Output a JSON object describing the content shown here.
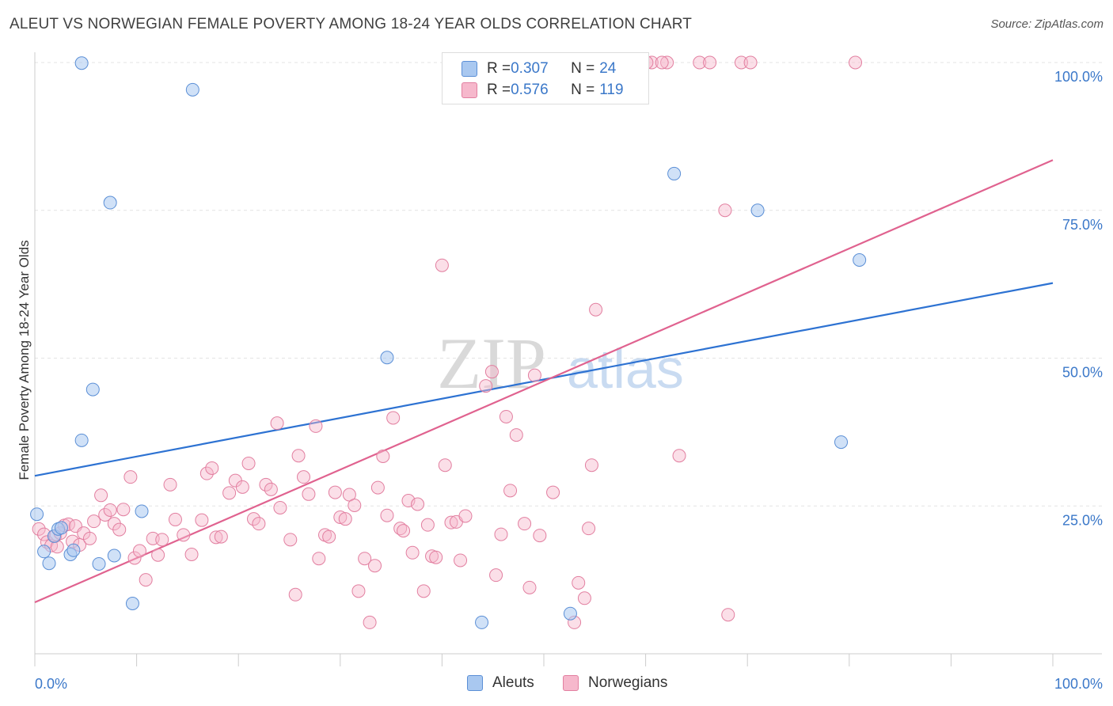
{
  "title": "ALEUT VS NORWEGIAN FEMALE POVERTY AMONG 18-24 YEAR OLDS CORRELATION CHART",
  "source": "Source: ZipAtlas.com",
  "watermark": {
    "zip": "ZIP",
    "atlas": "atlas"
  },
  "colors": {
    "aleut_fill": "#a9c8f0",
    "aleut_stroke": "#5b8fd6",
    "aleut_line": "#2d72d2",
    "norw_fill": "#f6b8cc",
    "norw_stroke": "#e27fa0",
    "norw_line": "#e0628f",
    "axis_label_blue": "#3b78c9",
    "grid": "#e3e3e3"
  },
  "legend": {
    "rows": [
      {
        "r_label": "R = ",
        "r_value": "0.307",
        "n_label": "N = ",
        "n_value": "24"
      },
      {
        "r_label": "R = ",
        "r_value": "0.576",
        "n_label": "N = ",
        "n_value": "119"
      }
    ]
  },
  "bottom_legend": {
    "aleuts": "Aleuts",
    "norwegians": "Norwegians"
  },
  "chart_data": {
    "type": "scatter",
    "xlabel": "",
    "ylabel": "Female Poverty Among 18-24 Year Olds",
    "xlim": [
      0,
      100
    ],
    "ylim": [
      0,
      100
    ],
    "x_tick_labels": [
      "0.0%",
      "100.0%"
    ],
    "y_tick_labels": [
      {
        "value": 25,
        "label": "25.0%"
      },
      {
        "value": 50,
        "label": "50.0%"
      },
      {
        "value": 75,
        "label": "75.0%"
      },
      {
        "value": 100,
        "label": "100.0%"
      }
    ],
    "grid": true,
    "series": [
      {
        "name": "Aleuts",
        "points": [
          [
            0.2,
            23.6
          ],
          [
            0.9,
            17.3
          ],
          [
            1.4,
            15.3
          ],
          [
            1.9,
            19.9
          ],
          [
            2.3,
            21.1
          ],
          [
            2.6,
            21.3
          ],
          [
            3.5,
            16.8
          ],
          [
            3.8,
            17.5
          ],
          [
            4.6,
            99.9
          ],
          [
            4.6,
            36.1
          ],
          [
            5.7,
            44.7
          ],
          [
            6.3,
            15.2
          ],
          [
            7.4,
            76.3
          ],
          [
            7.8,
            16.6
          ],
          [
            9.6,
            8.5
          ],
          [
            10.5,
            24.1
          ],
          [
            15.5,
            95.4
          ],
          [
            34.6,
            50.1
          ],
          [
            43.9,
            5.3
          ],
          [
            52.6,
            6.8
          ],
          [
            62.8,
            81.2
          ],
          [
            71.0,
            75.0
          ],
          [
            79.2,
            35.8
          ],
          [
            81.0,
            66.6
          ]
        ]
      },
      {
        "name": "Norwegians",
        "points": [
          [
            0.4,
            21.1
          ],
          [
            0.9,
            20.2
          ],
          [
            1.2,
            18.9
          ],
          [
            1.6,
            18.3
          ],
          [
            2.0,
            19.9
          ],
          [
            2.2,
            18.1
          ],
          [
            2.5,
            20.4
          ],
          [
            2.9,
            21.7
          ],
          [
            3.3,
            21.9
          ],
          [
            3.7,
            19.0
          ],
          [
            4.0,
            21.6
          ],
          [
            4.4,
            18.4
          ],
          [
            4.8,
            20.4
          ],
          [
            5.4,
            19.5
          ],
          [
            5.8,
            22.4
          ],
          [
            6.5,
            26.8
          ],
          [
            6.9,
            23.5
          ],
          [
            7.4,
            24.3
          ],
          [
            7.8,
            22.0
          ],
          [
            8.3,
            21.0
          ],
          [
            8.7,
            24.4
          ],
          [
            9.4,
            29.9
          ],
          [
            9.8,
            16.2
          ],
          [
            10.3,
            17.4
          ],
          [
            10.9,
            12.5
          ],
          [
            11.6,
            19.5
          ],
          [
            12.1,
            16.7
          ],
          [
            12.5,
            19.3
          ],
          [
            13.3,
            28.6
          ],
          [
            13.8,
            22.7
          ],
          [
            14.6,
            20.1
          ],
          [
            15.4,
            16.8
          ],
          [
            16.4,
            22.6
          ],
          [
            16.9,
            30.5
          ],
          [
            17.4,
            31.4
          ],
          [
            17.8,
            19.7
          ],
          [
            18.3,
            19.8
          ],
          [
            19.1,
            27.2
          ],
          [
            19.7,
            29.3
          ],
          [
            20.4,
            28.2
          ],
          [
            21.0,
            32.2
          ],
          [
            21.5,
            22.8
          ],
          [
            22.0,
            22.0
          ],
          [
            22.7,
            28.6
          ],
          [
            23.2,
            27.8
          ],
          [
            23.8,
            39.0
          ],
          [
            24.1,
            24.7
          ],
          [
            25.1,
            19.3
          ],
          [
            25.6,
            10.0
          ],
          [
            25.9,
            33.5
          ],
          [
            26.4,
            29.9
          ],
          [
            26.9,
            27.0
          ],
          [
            27.6,
            38.5
          ],
          [
            27.9,
            16.1
          ],
          [
            28.5,
            20.1
          ],
          [
            28.9,
            19.8
          ],
          [
            29.5,
            27.3
          ],
          [
            30.0,
            23.1
          ],
          [
            30.5,
            22.8
          ],
          [
            30.9,
            26.9
          ],
          [
            31.4,
            25.1
          ],
          [
            31.8,
            10.6
          ],
          [
            32.4,
            16.1
          ],
          [
            32.9,
            5.3
          ],
          [
            33.4,
            14.9
          ],
          [
            33.7,
            28.1
          ],
          [
            34.2,
            33.4
          ],
          [
            34.6,
            23.4
          ],
          [
            35.2,
            39.9
          ],
          [
            35.9,
            21.2
          ],
          [
            36.2,
            20.8
          ],
          [
            36.7,
            25.9
          ],
          [
            37.1,
            17.1
          ],
          [
            37.6,
            25.3
          ],
          [
            38.2,
            10.6
          ],
          [
            38.6,
            21.8
          ],
          [
            39.0,
            16.5
          ],
          [
            39.4,
            16.3
          ],
          [
            40.0,
            65.7
          ],
          [
            40.3,
            31.9
          ],
          [
            40.9,
            22.2
          ],
          [
            41.4,
            22.3
          ],
          [
            41.8,
            15.8
          ],
          [
            42.3,
            23.3
          ],
          [
            43.2,
            100.0
          ],
          [
            44.3,
            45.3
          ],
          [
            44.9,
            47.7
          ],
          [
            45.3,
            13.3
          ],
          [
            45.8,
            20.2
          ],
          [
            46.3,
            40.1
          ],
          [
            46.7,
            27.6
          ],
          [
            47.3,
            37.0
          ],
          [
            48.1,
            22.0
          ],
          [
            48.6,
            11.2
          ],
          [
            49.1,
            47.1
          ],
          [
            49.6,
            20.0
          ],
          [
            50.9,
            27.3
          ],
          [
            52.7,
            100.0
          ],
          [
            53.0,
            5.3
          ],
          [
            53.4,
            12.0
          ],
          [
            54.0,
            9.4
          ],
          [
            54.4,
            21.2
          ],
          [
            54.7,
            31.9
          ],
          [
            55.1,
            58.2
          ],
          [
            58.6,
            100.0
          ],
          [
            60.6,
            100.0
          ],
          [
            62.1,
            100.0
          ],
          [
            63.3,
            33.5
          ],
          [
            65.3,
            100.0
          ],
          [
            66.3,
            100.0
          ],
          [
            67.8,
            75.0
          ],
          [
            68.1,
            6.6
          ],
          [
            69.4,
            100.0
          ],
          [
            70.3,
            100.0
          ],
          [
            80.6,
            100.0
          ],
          [
            60.1,
            100.0
          ],
          [
            59.6,
            100.0
          ],
          [
            61.6,
            100.0
          ],
          [
            55.8,
            100.0
          ]
        ]
      }
    ],
    "trendlines": [
      {
        "series": "Aleuts",
        "x": [
          0,
          100
        ],
        "y": [
          30.1,
          62.7
        ]
      },
      {
        "series": "Norwegians",
        "x": [
          0,
          100
        ],
        "y": [
          8.7,
          83.5
        ]
      }
    ]
  }
}
